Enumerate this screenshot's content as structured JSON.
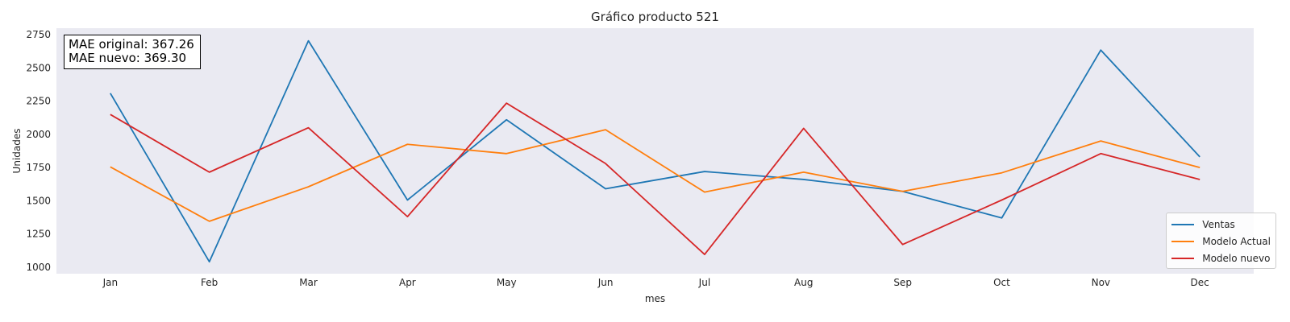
{
  "chart_data": {
    "type": "line",
    "title": "Gráfico producto 521",
    "xlabel": "mes",
    "ylabel": "Unidades",
    "categories": [
      "Jan",
      "Feb",
      "Mar",
      "Apr",
      "May",
      "Jun",
      "Jul",
      "Aug",
      "Sep",
      "Oct",
      "Nov",
      "Dec"
    ],
    "ylim": [
      950,
      2800
    ],
    "yticks": [
      1000,
      1250,
      1500,
      1750,
      2000,
      2250,
      2500,
      2750
    ],
    "grid": false,
    "legend_position": "bottom-right",
    "series": [
      {
        "name": "Ventas",
        "color": "#1f77b4",
        "values": [
          2310,
          1040,
          2705,
          1505,
          2110,
          1590,
          1720,
          1660,
          1570,
          1370,
          2635,
          1830
        ]
      },
      {
        "name": "Modelo Actual",
        "color": "#ff7f0e",
        "values": [
          1755,
          1345,
          1605,
          1925,
          1855,
          2035,
          1565,
          1715,
          1570,
          1710,
          1950,
          1750
        ]
      },
      {
        "name": "Modelo nuevo",
        "color": "#d62728",
        "values": [
          2150,
          1715,
          2050,
          1380,
          2235,
          1780,
          1095,
          2045,
          1170,
          1505,
          1855,
          1660
        ]
      }
    ],
    "annotation": {
      "line1": "MAE original: 367.26",
      "line2": "MAE nuevo: 369.30"
    }
  },
  "colors": {
    "plot_background": "#eaeaf2"
  }
}
